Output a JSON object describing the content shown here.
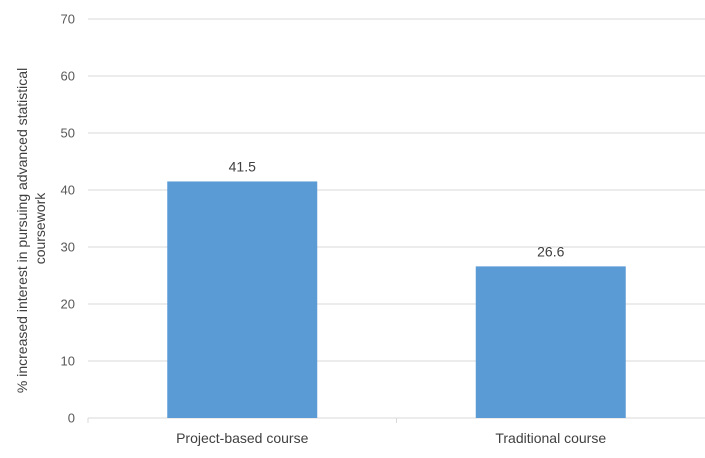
{
  "chart_data": {
    "type": "bar",
    "categories": [
      "Project-based course",
      "Traditional course"
    ],
    "values": [
      41.5,
      26.6
    ],
    "data_labels": [
      "41.5",
      "26.6"
    ],
    "title": "",
    "xlabel": "",
    "ylabel_lines": [
      "% increased interest in pursuing advanced statistical",
      "coursework"
    ],
    "ylim": [
      0,
      70
    ],
    "yticks": [
      0,
      10,
      20,
      30,
      40,
      50,
      60,
      70
    ],
    "grid": true,
    "legend": "none",
    "bar_color": "#5b9bd5"
  }
}
